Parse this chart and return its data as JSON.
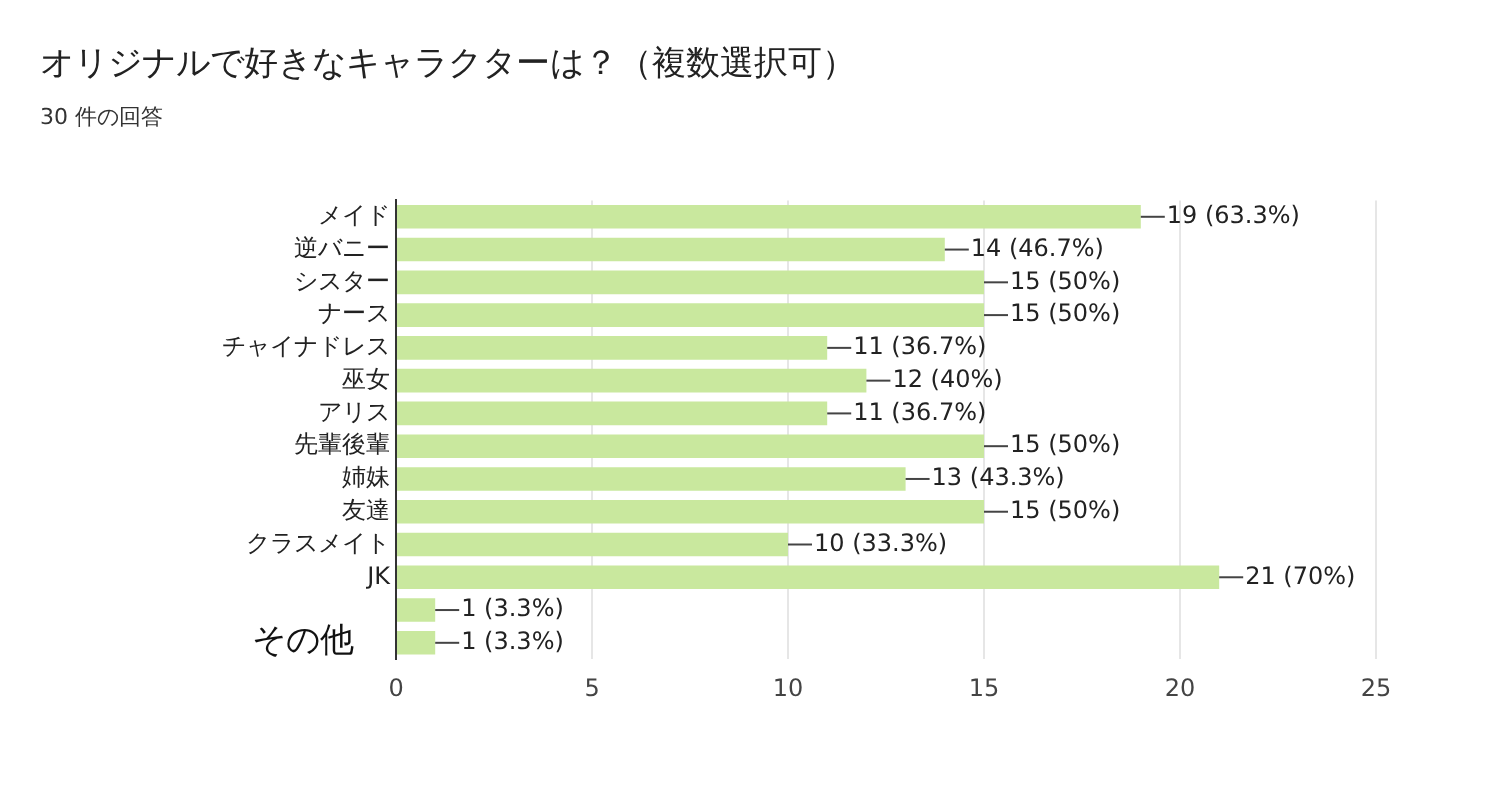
{
  "chart_data": {
    "type": "bar",
    "orientation": "horizontal",
    "title": "オリジナルで好きなキャラクターは？（複数選択可）",
    "subtitle": "30 件の回答",
    "categories": [
      "メイド",
      "逆バニー",
      "シスター",
      "ナース",
      "チャイナドレス",
      "巫女",
      "アリス",
      "先輩後輩",
      "姉妹",
      "友達",
      "クラスメイト",
      "JK",
      null,
      null
    ],
    "values": [
      19,
      14,
      15,
      15,
      11,
      12,
      11,
      15,
      13,
      15,
      10,
      21,
      1,
      1
    ],
    "value_labels": [
      "19 (63.3%)",
      "14 (46.7%)",
      "15 (50%)",
      "15 (50%)",
      "11 (36.7%)",
      "12 (40%)",
      "11 (36.7%)",
      "15 (50%)",
      "13 (43.3%)",
      "15 (50%)",
      "10 (33.3%)",
      "21 (70%)",
      "1 (3.3%)",
      "1 (3.3%)"
    ],
    "color": "#c9e89e",
    "xlim": [
      0,
      25
    ],
    "xticks": [
      0,
      5,
      10,
      15,
      20,
      25
    ],
    "grid": "x",
    "legend": false,
    "annotations": [
      "その他"
    ]
  }
}
